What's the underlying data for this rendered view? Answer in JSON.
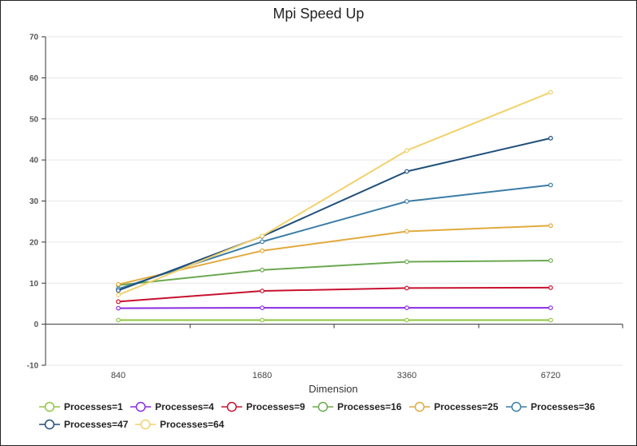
{
  "chart_data": {
    "type": "line",
    "title": "Mpi Speed Up",
    "xlabel": "Dimension",
    "ylabel": "",
    "categories": [
      "840",
      "1680",
      "3360",
      "6720"
    ],
    "ylim": [
      -10,
      70
    ],
    "yticks": [
      -10,
      0,
      10,
      20,
      30,
      40,
      50,
      60,
      70
    ],
    "grid": true,
    "legend_position": "bottom",
    "series": [
      {
        "name": "Processes=1",
        "color": "#8dc63f",
        "values": [
          1.0,
          1.0,
          1.0,
          1.0
        ]
      },
      {
        "name": "Processes=4",
        "color": "#8a2be2",
        "values": [
          3.9,
          4.0,
          4.0,
          4.0
        ]
      },
      {
        "name": "Processes=9",
        "color": "#c8102e",
        "values": [
          5.5,
          8.1,
          8.8,
          8.9
        ]
      },
      {
        "name": "Processes=16",
        "color": "#6aa84f",
        "values": [
          9.5,
          13.2,
          15.2,
          15.5
        ]
      },
      {
        "name": "Processes=25",
        "color": "#e1a93c",
        "values": [
          9.7,
          17.9,
          22.6,
          24.0
        ]
      },
      {
        "name": "Processes=36",
        "color": "#3a7ca5",
        "values": [
          8.6,
          20.1,
          29.9,
          33.9
        ]
      },
      {
        "name": "Processes=47",
        "color": "#1f4e79",
        "values": [
          8.2,
          21.4,
          37.2,
          45.3
        ]
      },
      {
        "name": "Processes=64",
        "color": "#f2d16b",
        "values": [
          7.1,
          21.5,
          42.3,
          56.5
        ]
      }
    ]
  }
}
